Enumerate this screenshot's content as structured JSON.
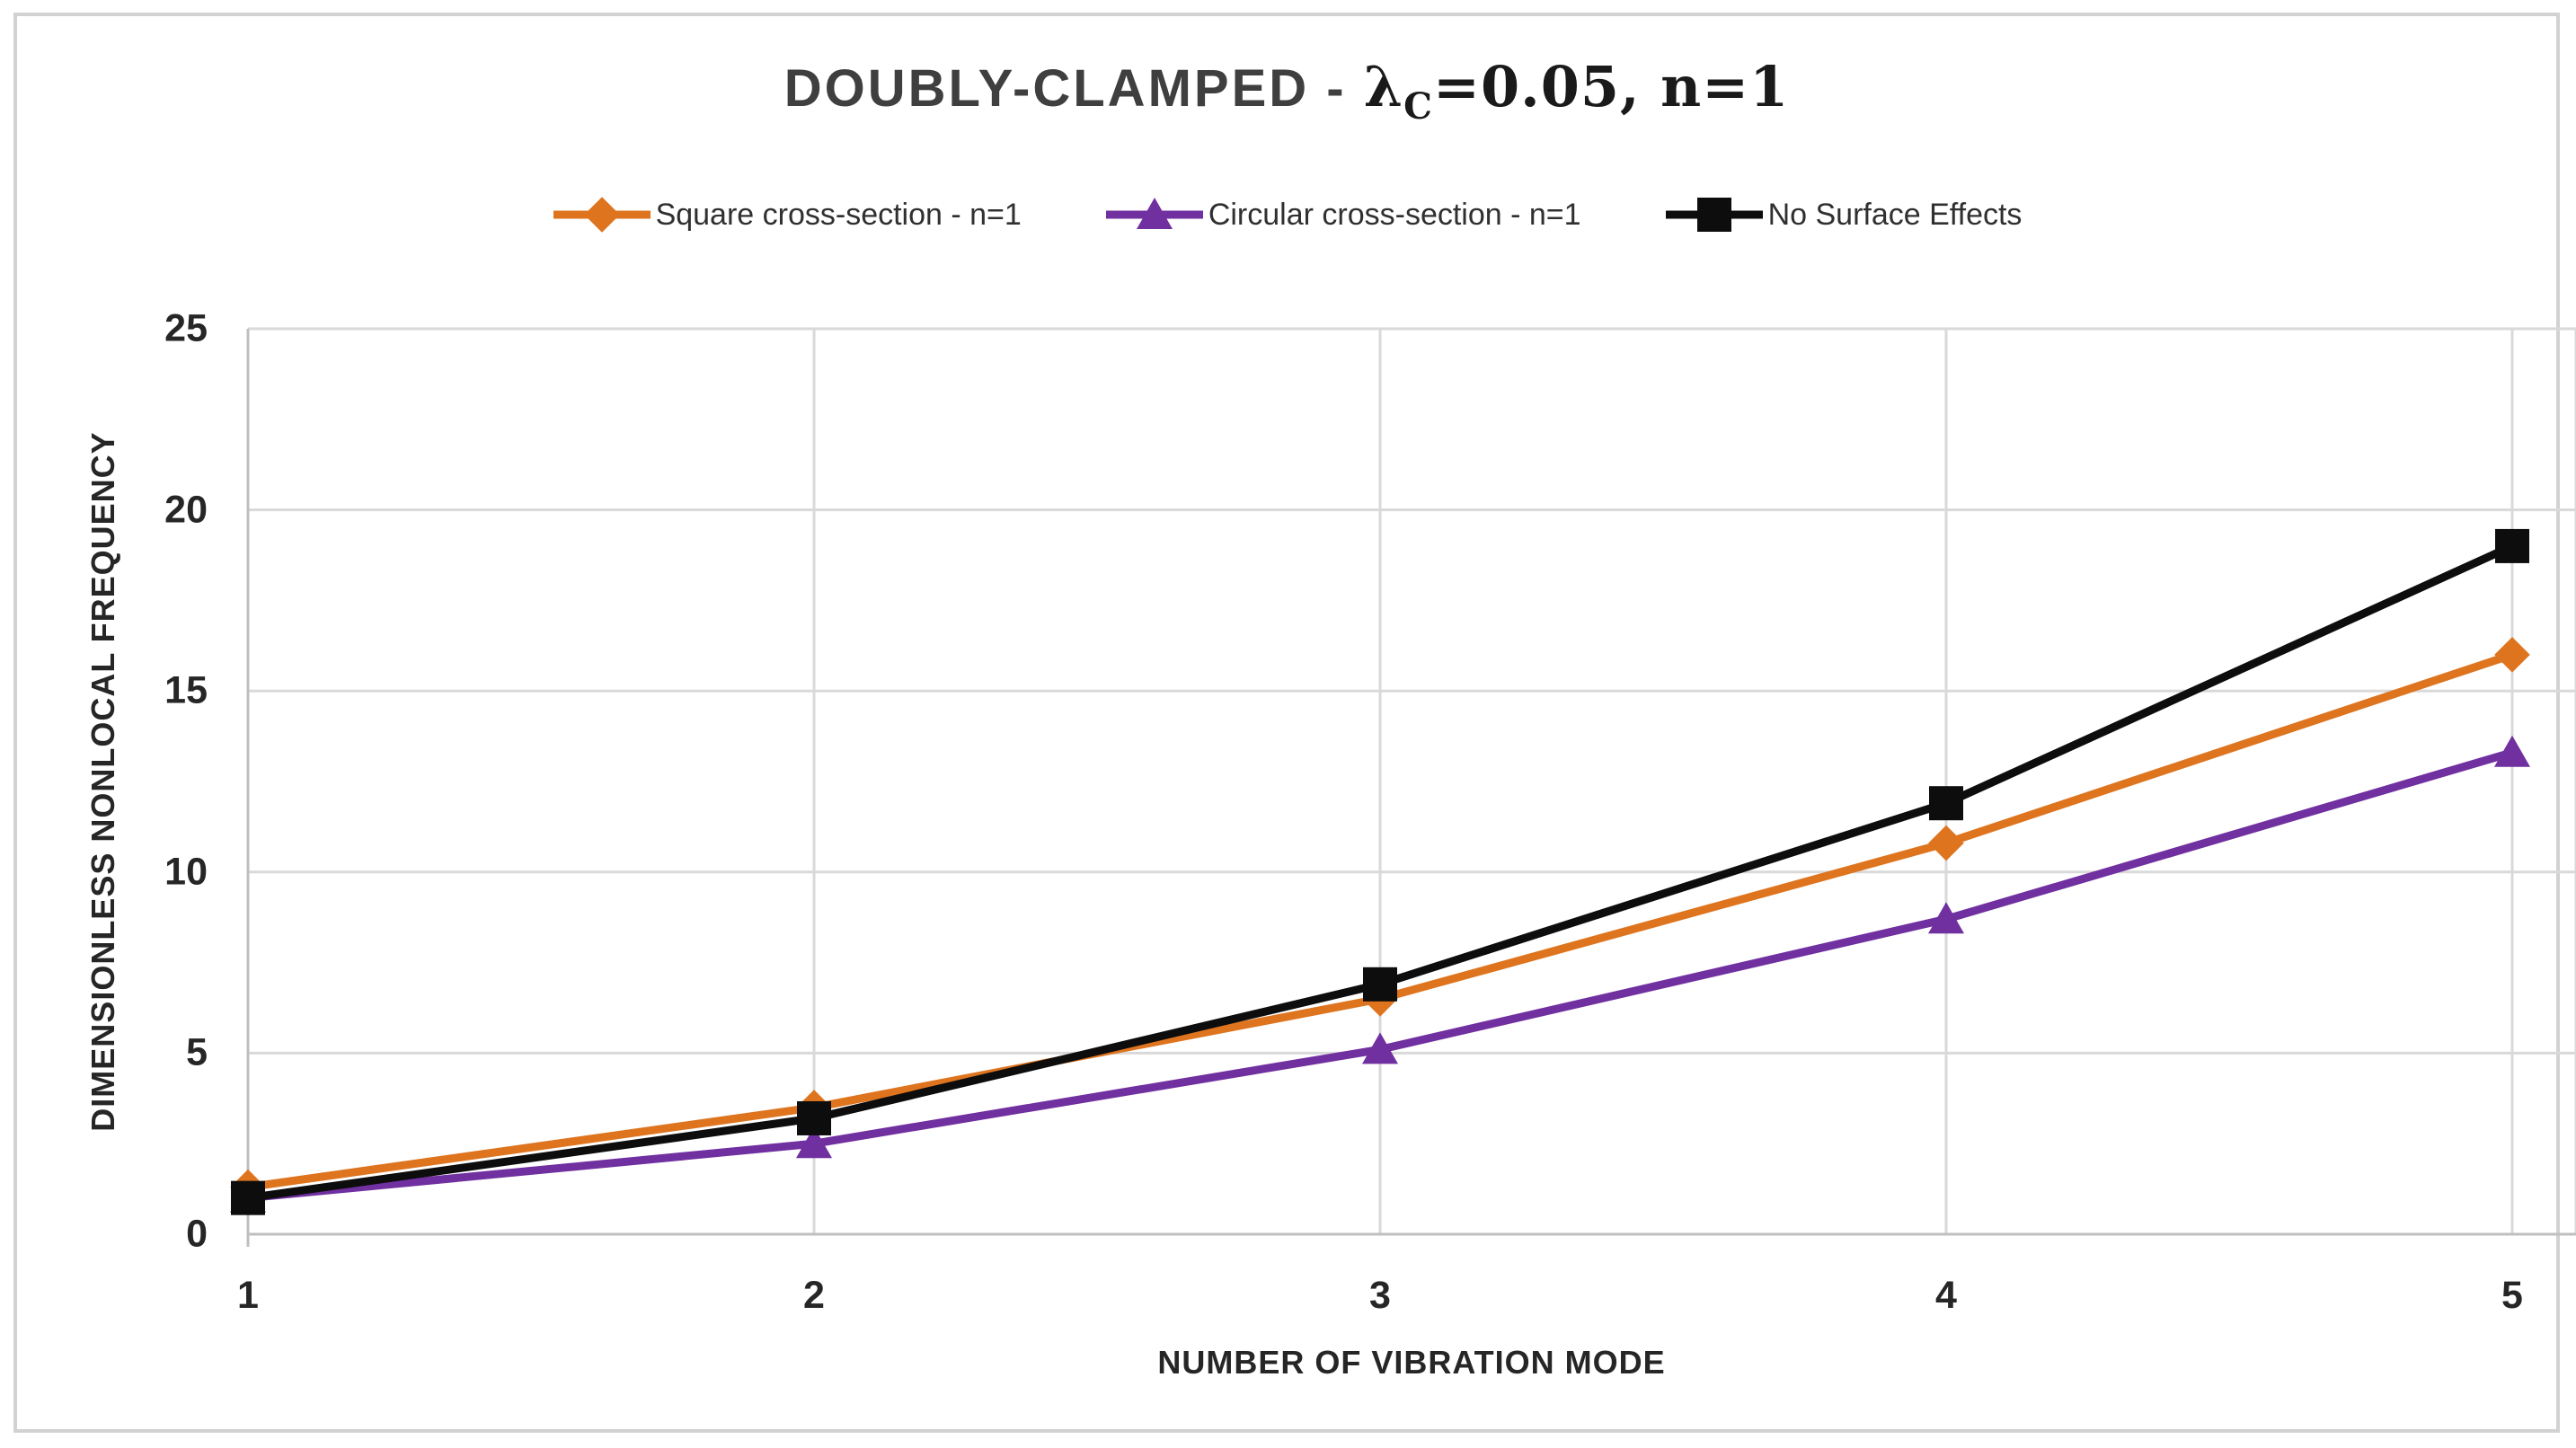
{
  "chart_data": {
    "type": "line",
    "title": {
      "main": "DOUBLY-CLAMPED",
      "dash": " - ",
      "lambda": "λ",
      "lambda_sub": "C",
      "rest": "=0.05, n=1"
    },
    "x": [
      1,
      2,
      3,
      4,
      5
    ],
    "x_tick_labels": [
      "1",
      "2",
      "3",
      "4",
      "5"
    ],
    "y_ticks": [
      0,
      5,
      10,
      15,
      20,
      25
    ],
    "ylim": [
      0,
      25
    ],
    "grid": true,
    "legend_position": "top",
    "xlabel": "NUMBER OF VIBRATION MODE",
    "ylabel": "DIMENSIONLESS NONLOCAL FREQUENCY",
    "series": [
      {
        "name": "Square cross-section - n=1",
        "color": "#de741e",
        "marker": "diamond",
        "values": [
          1.3,
          3.5,
          6.5,
          10.8,
          16.0
        ]
      },
      {
        "name": "Circular cross-section - n=1",
        "color": "#7030a0",
        "marker": "triangle",
        "values": [
          1.0,
          2.5,
          5.1,
          8.7,
          13.3
        ]
      },
      {
        "name": "No Surface Effects",
        "color": "#0d0d0d",
        "marker": "square",
        "values": [
          1.0,
          3.2,
          6.9,
          11.9,
          19.0
        ]
      }
    ]
  }
}
